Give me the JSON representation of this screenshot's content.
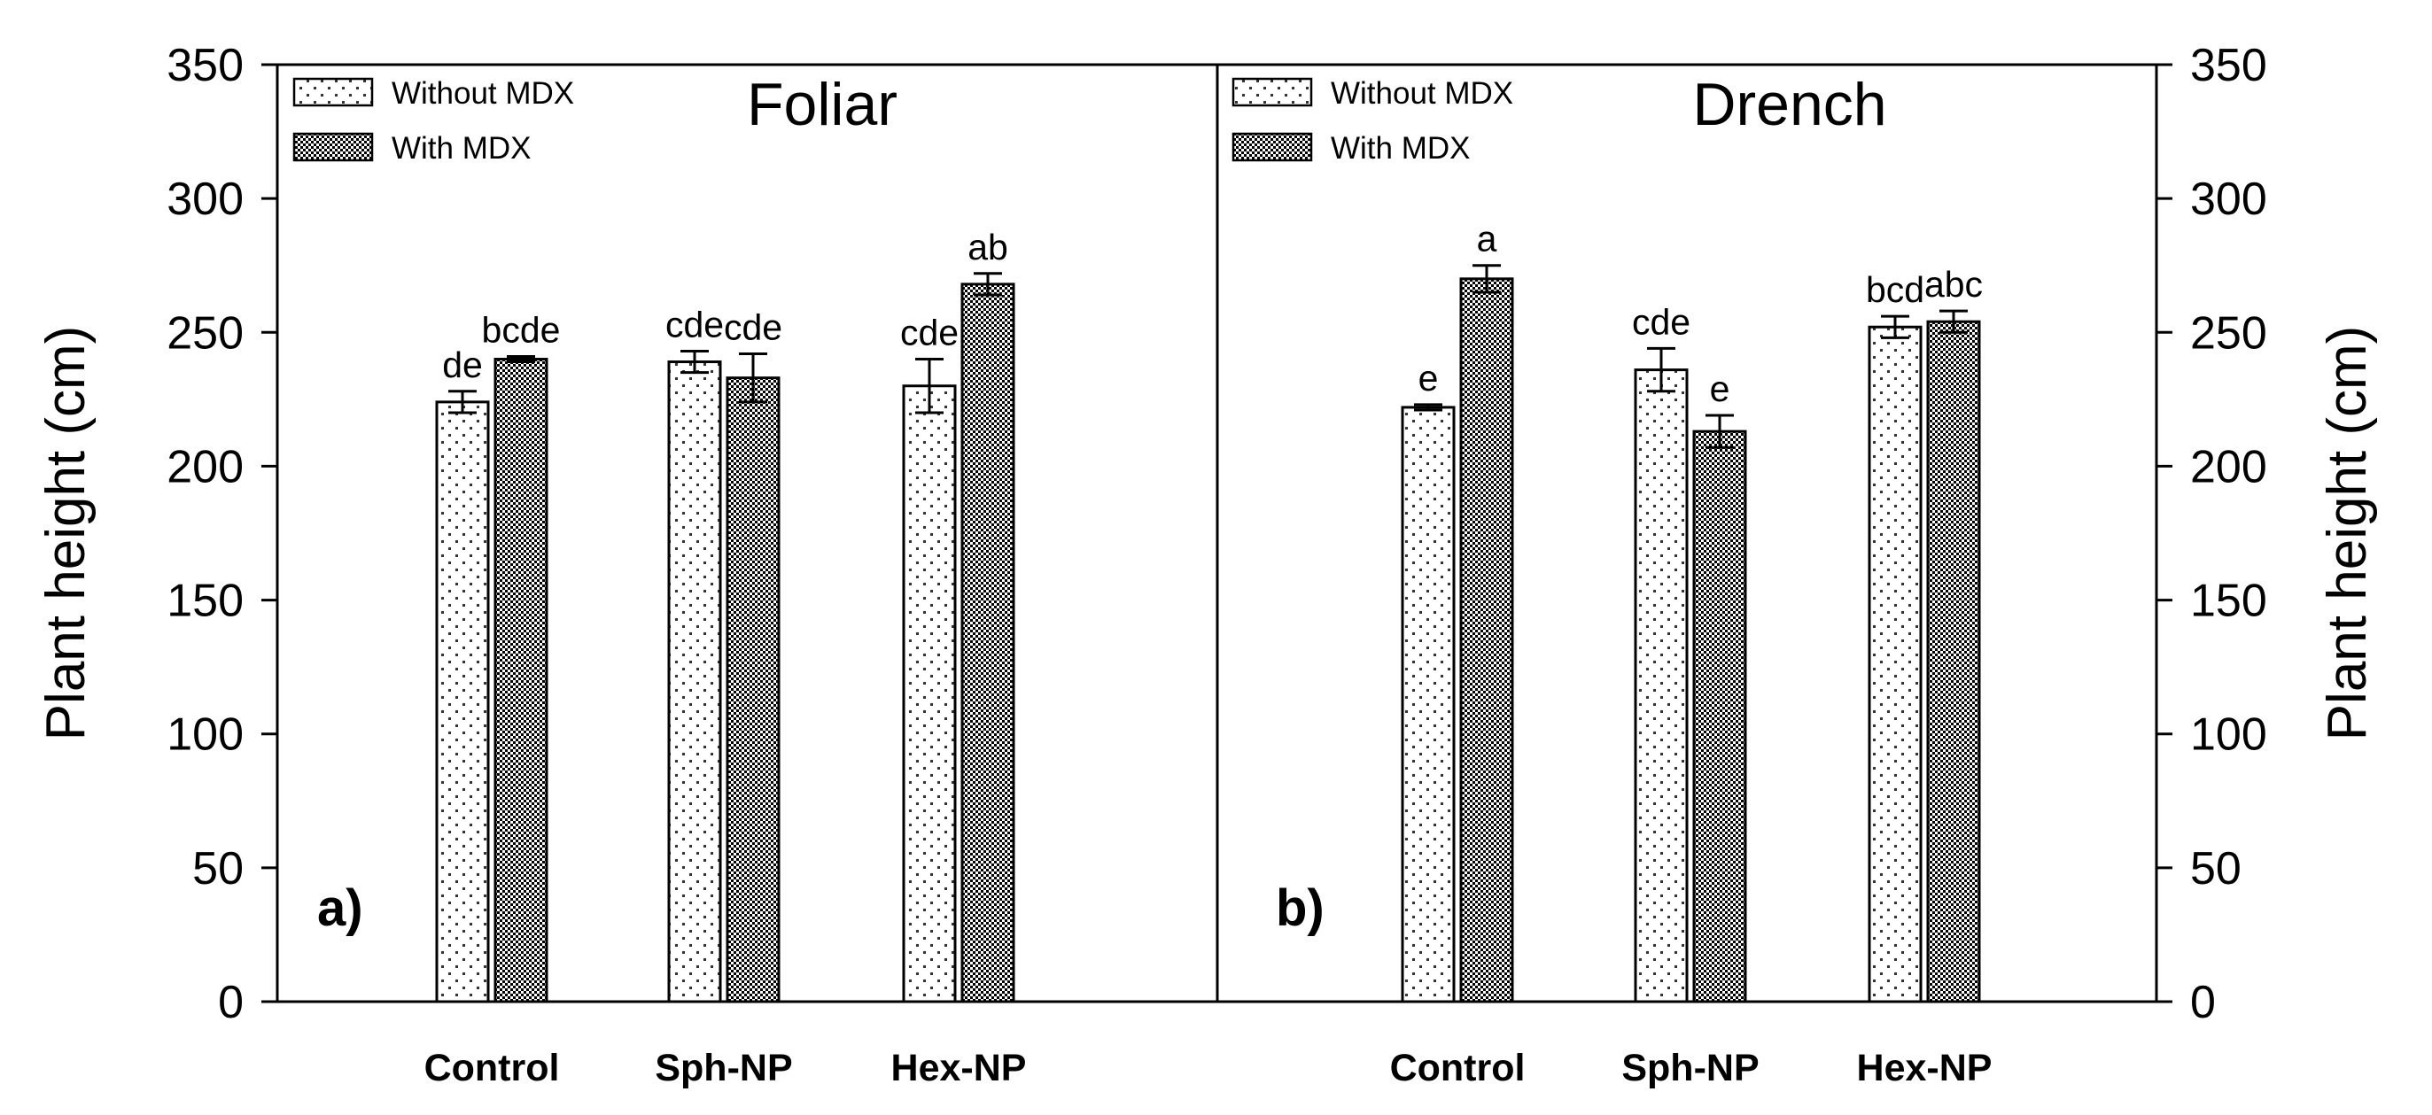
{
  "chart_data": {
    "type": "bar",
    "ylabel": "Plant height (cm)",
    "ylim": [
      0,
      350
    ],
    "yticks": [
      0,
      50,
      100,
      150,
      200,
      250,
      300,
      350
    ],
    "categories": [
      "Control",
      "Sph-NP",
      "Hex-NP"
    ],
    "legend": [
      "Without MDX",
      "With MDX"
    ],
    "legend_position": "top-left",
    "grid": false,
    "panels": [
      {
        "tag": "a)",
        "title": "Foliar",
        "series": [
          {
            "name": "Without MDX",
            "values": [
              224,
              239,
              230
            ],
            "errors": [
              4,
              4,
              10
            ],
            "labels": [
              "de",
              "cde",
              "cde"
            ]
          },
          {
            "name": "With MDX",
            "values": [
              240,
              233,
              268
            ],
            "errors": [
              1,
              9,
              4
            ],
            "labels": [
              "bcde",
              "cde",
              "ab"
            ]
          }
        ]
      },
      {
        "tag": "b)",
        "title": "Drench",
        "series": [
          {
            "name": "Without MDX",
            "values": [
              222,
              236,
              252
            ],
            "errors": [
              1,
              8,
              4
            ],
            "labels": [
              "e",
              "cde",
              "bcd"
            ]
          },
          {
            "name": "With MDX",
            "values": [
              270,
              213,
              254
            ],
            "errors": [
              5,
              6,
              4
            ],
            "labels": [
              "a",
              "e",
              "abc"
            ]
          }
        ]
      }
    ]
  },
  "colors": {
    "without_mdx_fill": "#ffffff",
    "with_mdx_fill": "#8c8c8c",
    "axis": "#000000"
  }
}
